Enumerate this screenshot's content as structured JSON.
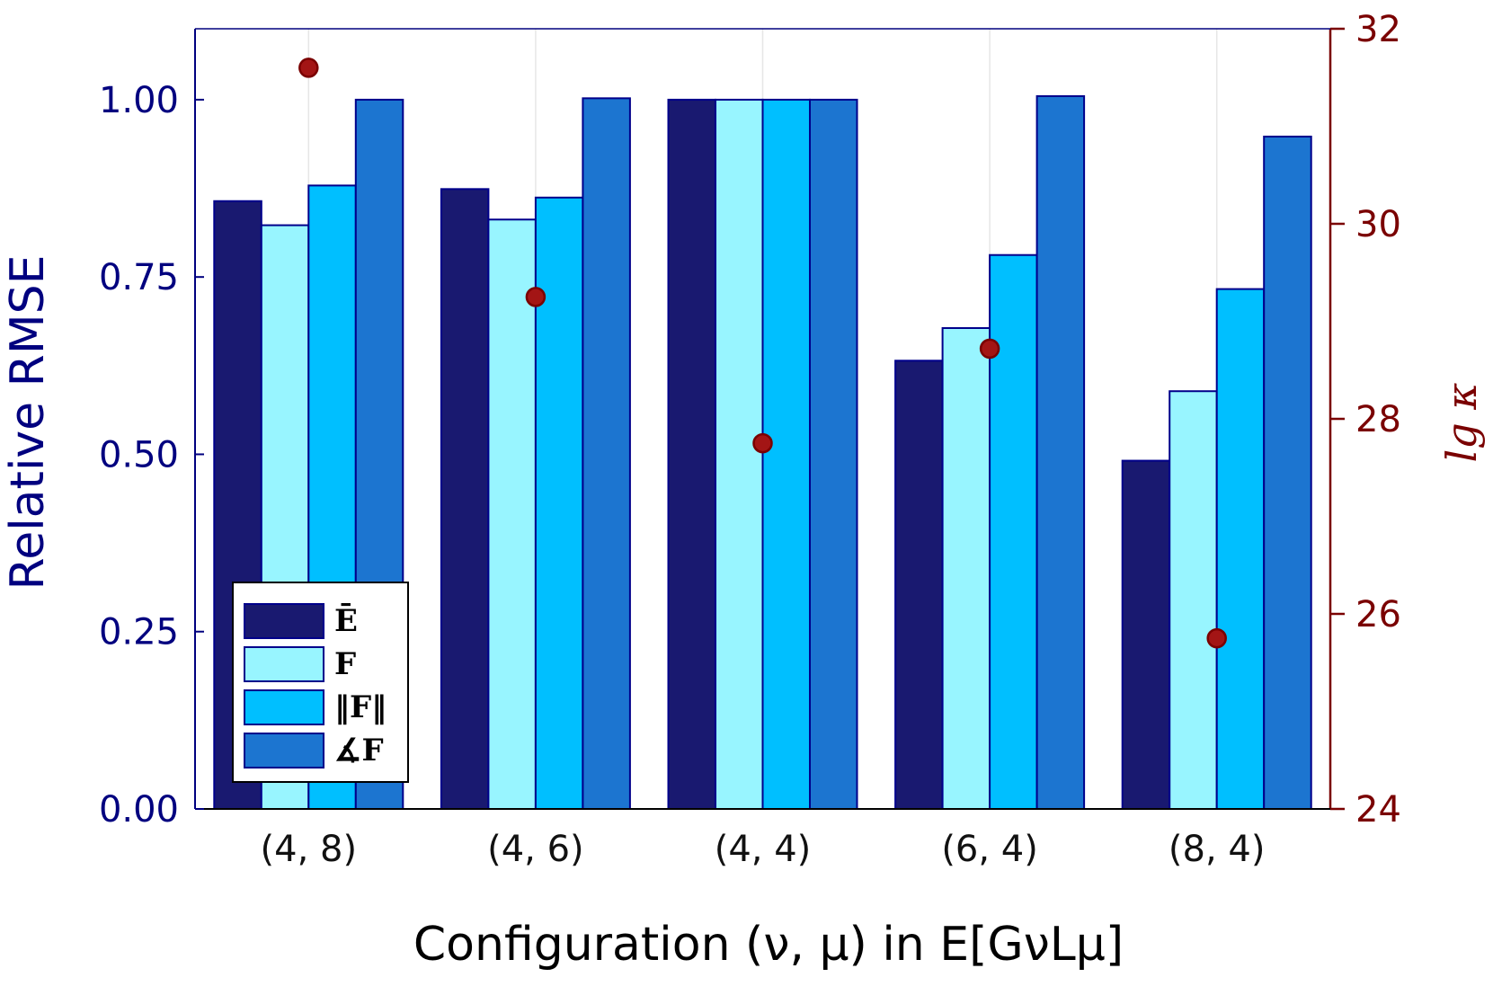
{
  "chart_data": {
    "type": "bar",
    "title": "",
    "categories": [
      "(4, 8)",
      "(4, 6)",
      "(4, 4)",
      "(6, 4)",
      "(8, 4)"
    ],
    "xlabel": "Configuration (ν, μ) in E[GνLμ]",
    "ylabel": "Relative RMSE",
    "y2label": "lg κ",
    "ylim": [
      0,
      1.1
    ],
    "y2lim": [
      24,
      32
    ],
    "yticks": [
      "0.00",
      "0.25",
      "0.50",
      "0.75",
      "1.00"
    ],
    "y2ticks": [
      "24",
      "26",
      "28",
      "30",
      "32"
    ],
    "grid": true,
    "legend_position": "bottom-left",
    "series": [
      {
        "name": "Ē",
        "color": "#191970",
        "values": [
          0.857,
          0.874,
          1.0,
          0.632,
          0.491
        ]
      },
      {
        "name": "F",
        "color": "#98f5ff",
        "values": [
          0.823,
          0.831,
          1.0,
          0.678,
          0.589
        ]
      },
      {
        "name": "‖F‖",
        "color": "#00bfff",
        "values": [
          0.879,
          0.862,
          1.0,
          0.781,
          0.733
        ]
      },
      {
        "name": "∡F",
        "color": "#1c75d0",
        "values": [
          1.0,
          1.002,
          1.0,
          1.005,
          0.948
        ]
      }
    ],
    "secondary_series": {
      "name": "lg κ",
      "type": "scatter",
      "axis": "right",
      "color": "#a31515",
      "values": [
        31.6,
        29.25,
        27.75,
        28.72,
        25.75
      ]
    }
  }
}
